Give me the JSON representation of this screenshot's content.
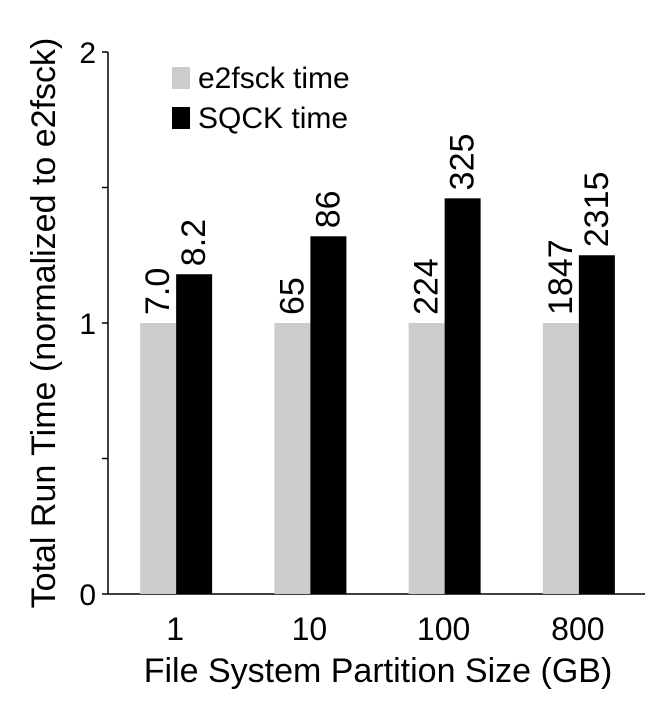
{
  "chart_data": {
    "type": "bar",
    "title": "",
    "xlabel": "File System Partition Size (GB)",
    "ylabel": "Total Run Time (normalized to e2fsck)",
    "categories": [
      "1",
      "10",
      "100",
      "800"
    ],
    "ylim": [
      0,
      2
    ],
    "yticks": [
      0,
      0.5,
      1,
      1.5,
      2
    ],
    "ytick_labels": [
      "0",
      "",
      "1",
      "",
      "2"
    ],
    "series": [
      {
        "name": "e2fsck time",
        "color": "#cccccc",
        "values": [
          1.0,
          1.0,
          1.0,
          1.0
        ],
        "labels": [
          "7.0",
          "65",
          "224",
          "1847"
        ]
      },
      {
        "name": "SQCK time",
        "color": "#000000",
        "values": [
          1.18,
          1.32,
          1.46,
          1.25
        ],
        "labels": [
          "8.2",
          "86",
          "325",
          "2315"
        ]
      }
    ],
    "legend_position": "top-left",
    "grid": false
  }
}
